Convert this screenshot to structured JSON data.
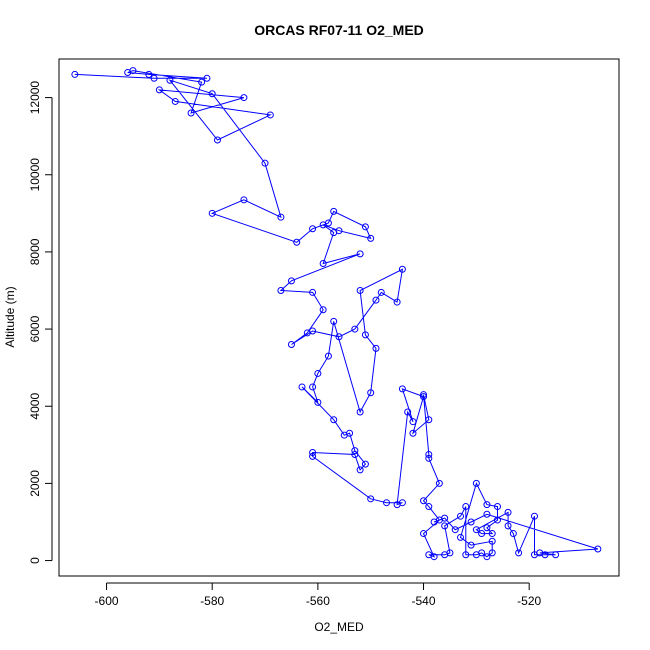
{
  "chart_data": {
    "type": "line",
    "title": "ORCAS RF07-11 O2_MED",
    "xlabel": "O2_MED",
    "ylabel": "Altitude (m)",
    "xlim": [
      -609,
      -503
    ],
    "ylim": [
      -400,
      13000
    ],
    "xticks": [
      -600,
      -580,
      -560,
      -540,
      -520
    ],
    "yticks": [
      0,
      2000,
      4000,
      6000,
      8000,
      10000,
      12000
    ],
    "grid": false,
    "series": [
      {
        "marker": "open-circle",
        "color": "#0000ff",
        "points": [
          [
            -606,
            12600
          ],
          [
            -591,
            12500
          ],
          [
            -581,
            12500
          ],
          [
            -592,
            12600
          ],
          [
            -596,
            12650
          ],
          [
            -595,
            12700
          ],
          [
            -582,
            12400
          ],
          [
            -584,
            11600
          ],
          [
            -574,
            12000
          ],
          [
            -590,
            12200
          ],
          [
            -587,
            11900
          ],
          [
            -569,
            11550
          ],
          [
            -579,
            10900
          ],
          [
            -588,
            12450
          ],
          [
            -580,
            12100
          ],
          [
            -570,
            10300
          ],
          [
            -567,
            8900
          ],
          [
            -574,
            9350
          ],
          [
            -580,
            9000
          ],
          [
            -564,
            8250
          ],
          [
            -561,
            8600
          ],
          [
            -558,
            8750
          ],
          [
            -557,
            9050
          ],
          [
            -551,
            8650
          ],
          [
            -550,
            8350
          ],
          [
            -556,
            8550
          ],
          [
            -559,
            8700
          ],
          [
            -557,
            8500
          ],
          [
            -559,
            7700
          ],
          [
            -552,
            7950
          ],
          [
            -565,
            7250
          ],
          [
            -567,
            7000
          ],
          [
            -561,
            6950
          ],
          [
            -559,
            6500
          ],
          [
            -562,
            5900
          ],
          [
            -565,
            5600
          ],
          [
            -561,
            5950
          ],
          [
            -556,
            5800
          ],
          [
            -553,
            6000
          ],
          [
            -549,
            6750
          ],
          [
            -548,
            6950
          ],
          [
            -545,
            6700
          ],
          [
            -544,
            7550
          ],
          [
            -552,
            7000
          ],
          [
            -551,
            5850
          ],
          [
            -549,
            5500
          ],
          [
            -550,
            4350
          ],
          [
            -552,
            3850
          ],
          [
            -557,
            6200
          ],
          [
            -558,
            5300
          ],
          [
            -560,
            4850
          ],
          [
            -561,
            4500
          ],
          [
            -560,
            4100
          ],
          [
            -563,
            4500
          ],
          [
            -557,
            3650
          ],
          [
            -555,
            3250
          ],
          [
            -554,
            3300
          ],
          [
            -553,
            2850
          ],
          [
            -551,
            2500
          ],
          [
            -552,
            2350
          ],
          [
            -553,
            2750
          ],
          [
            -561,
            2800
          ],
          [
            -561,
            2700
          ],
          [
            -550,
            1600
          ],
          [
            -547,
            1500
          ],
          [
            -544,
            1500
          ],
          [
            -545,
            1450
          ],
          [
            -543,
            3850
          ],
          [
            -542,
            3600
          ],
          [
            -544,
            4450
          ],
          [
            -540,
            4250
          ],
          [
            -542,
            3300
          ],
          [
            -539,
            3650
          ],
          [
            -540,
            4300
          ],
          [
            -539,
            2750
          ],
          [
            -539,
            2650
          ],
          [
            -537,
            2000
          ],
          [
            -540,
            1550
          ],
          [
            -539,
            1400
          ],
          [
            -537,
            1050
          ],
          [
            -540,
            700
          ],
          [
            -538,
            100
          ],
          [
            -539,
            150
          ],
          [
            -536,
            150
          ],
          [
            -535,
            200
          ],
          [
            -536,
            900
          ],
          [
            -533,
            1150
          ],
          [
            -532,
            1400
          ],
          [
            -532,
            150
          ],
          [
            -530,
            150
          ],
          [
            -529,
            200
          ],
          [
            -528,
            100
          ],
          [
            -527,
            200
          ],
          [
            -527,
            500
          ],
          [
            -531,
            400
          ],
          [
            -533,
            600
          ],
          [
            -530,
            2000
          ],
          [
            -528,
            1450
          ],
          [
            -526,
            1400
          ],
          [
            -526,
            1050
          ],
          [
            -528,
            850
          ],
          [
            -527,
            700
          ],
          [
            -529,
            700
          ],
          [
            -530,
            800
          ],
          [
            -524,
            1250
          ],
          [
            -524,
            900
          ],
          [
            -523,
            700
          ],
          [
            -522,
            200
          ],
          [
            -519,
            1150
          ],
          [
            -519,
            150
          ],
          [
            -517,
            150
          ],
          [
            -515,
            150
          ],
          [
            -518,
            200
          ],
          [
            -507,
            300
          ],
          [
            -528,
            1200
          ],
          [
            -531,
            1000
          ],
          [
            -534,
            800
          ],
          [
            -536,
            1100
          ],
          [
            -538,
            1000
          ]
        ]
      }
    ]
  }
}
